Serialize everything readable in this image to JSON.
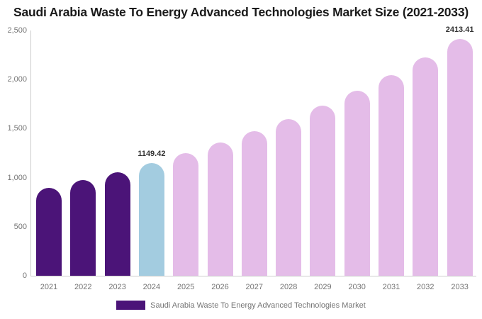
{
  "title": "Saudi Arabia Waste To Energy Advanced Technologies Market Size (2021-2033)",
  "legend": {
    "label": "Saudi Arabia Waste To Energy Advanced Technologies Market",
    "swatch_color": "#4B1478"
  },
  "chart_data": {
    "type": "bar",
    "title": "Saudi Arabia Waste To Energy Advanced Technologies Market Size (2021-2033)",
    "categories": [
      "2021",
      "2022",
      "2023",
      "2024",
      "2025",
      "2026",
      "2027",
      "2028",
      "2029",
      "2030",
      "2031",
      "2032",
      "2033"
    ],
    "values": [
      897.7,
      974.8,
      1058.5,
      1149.42,
      1248.1,
      1355.3,
      1471.7,
      1598.1,
      1735.4,
      1884.4,
      2046.3,
      2222.1,
      2413.41
    ],
    "segments": [
      "historical",
      "historical",
      "historical",
      "current",
      "forecast",
      "forecast",
      "forecast",
      "forecast",
      "forecast",
      "forecast",
      "forecast",
      "forecast",
      "forecast"
    ],
    "colors": {
      "historical": "#4B1478",
      "current": "#A3CCE0",
      "forecast": "#E4BCE8"
    },
    "data_labels": {
      "2024": "1149.42",
      "2033": "2413.41"
    },
    "xlabel": "",
    "ylabel": "",
    "ylim": [
      0,
      2500
    ],
    "y_ticks": [
      "0",
      "500",
      "1,000",
      "1,500",
      "2,000",
      "2,500"
    ],
    "y_tick_values": [
      0,
      500,
      1000,
      1500,
      2000,
      2500
    ],
    "grid": false,
    "legend_position": "bottom"
  }
}
